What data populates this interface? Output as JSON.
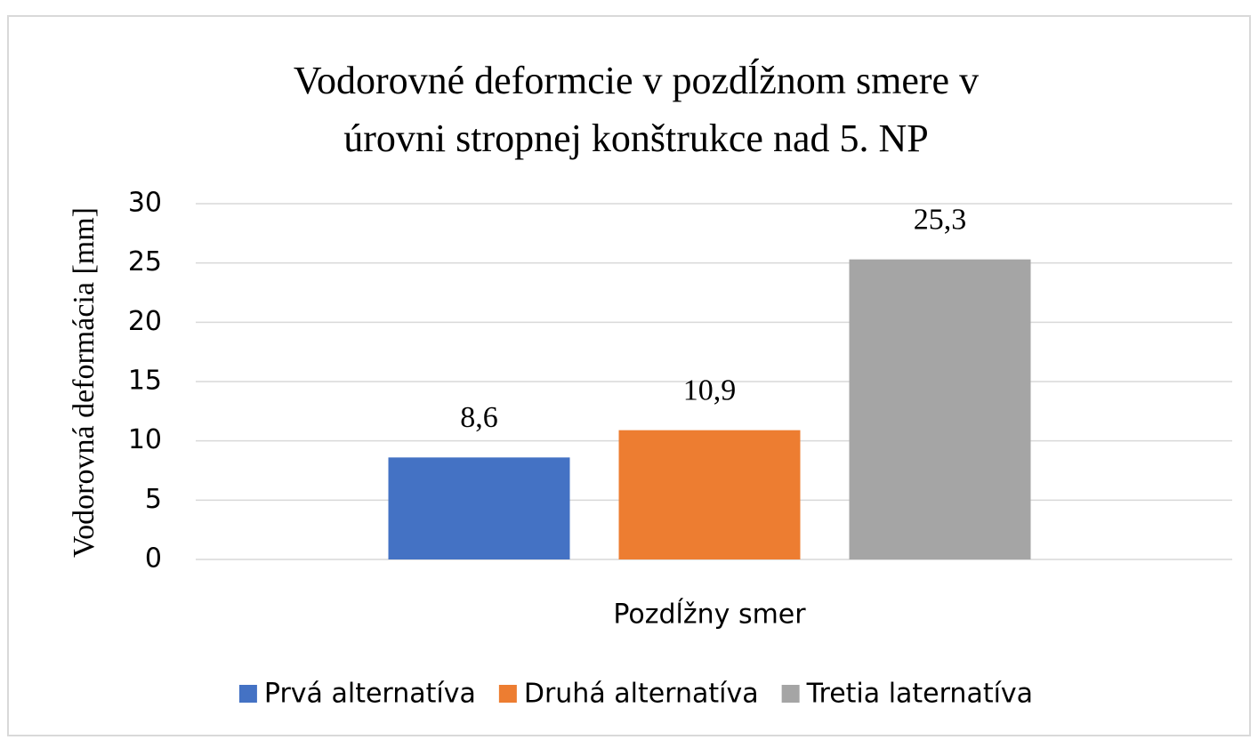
{
  "chart_data": {
    "type": "bar",
    "title": [
      "Vodorovné deformcie v pozdĺžnom smere v",
      "úrovni stropnej konštrukce nad 5. NP"
    ],
    "y_label": "Vodorovná deformácia [mm]",
    "categories": [
      "Pozdĺžny smer"
    ],
    "series": [
      {
        "name": "Prvá alternatíva",
        "color": "#4472c4",
        "values": [
          8.6
        ],
        "value_labels": [
          "8,6"
        ]
      },
      {
        "name": "Druhá alternatíva",
        "color": "#ed7d31",
        "values": [
          10.9
        ],
        "value_labels": [
          "10,9"
        ]
      },
      {
        "name": "Tretia laternatíva",
        "color": "#a5a5a5",
        "values": [
          25.3
        ],
        "value_labels": [
          "25,3"
        ]
      }
    ],
    "ylim": [
      0,
      30
    ],
    "yticks": [
      0,
      5,
      10,
      15,
      20,
      25,
      30
    ],
    "grid": true,
    "legend": "bottom"
  }
}
